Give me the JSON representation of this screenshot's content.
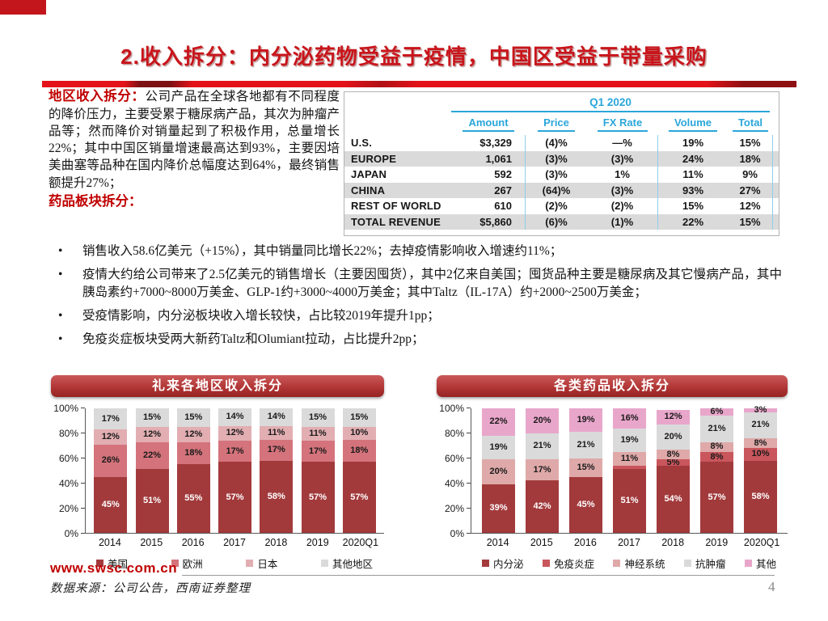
{
  "title": "2.收入拆分：内分泌药物受益于疫情，中国区受益于带量采购",
  "intro": {
    "lead": "地区收入拆分：",
    "body": "公司产品在全球各地都有不同程度的降价压力，主要受累于糖尿病产品，其次为肿瘤产品等；然而降价对销量起到了积极作用，总量增长22%；其中中国区销量增速最高达到93%，主要因培美曲塞等品种在国内降价总幅度达到64%，最终销售额提升27%；",
    "lead2": "药品板块拆分："
  },
  "table": {
    "period": "Q1 2020",
    "columns": [
      "Amount",
      "Price",
      "FX Rate",
      "Volume",
      "Total"
    ],
    "rows": [
      {
        "label": "U.S.",
        "values": [
          "$3,329",
          "(4)%",
          "—%",
          "19%",
          "15%"
        ]
      },
      {
        "label": "EUROPE",
        "values": [
          "1,061",
          "(3)%",
          "(3)%",
          "24%",
          "18%"
        ]
      },
      {
        "label": "JAPAN",
        "values": [
          "592",
          "(3)%",
          "1%",
          "11%",
          "9%"
        ]
      },
      {
        "label": "CHINA",
        "values": [
          "267",
          "(64)%",
          "(3)%",
          "93%",
          "27%"
        ]
      },
      {
        "label": "REST OF WORLD",
        "values": [
          "610",
          "(2)%",
          "(2)%",
          "15%",
          "12%"
        ]
      },
      {
        "label": "TOTAL REVENUE",
        "values": [
          "$5,860",
          "(6)%",
          "(1)%",
          "22%",
          "15%"
        ]
      }
    ]
  },
  "bullets": [
    "销售收入58.6亿美元（+15%），其中销量同比增长22%；去掉疫情影响收入增速约11%；",
    "疫情大约给公司带来了2.5亿美元的销售增长（主要因囤货），其中2亿来自美国；囤货品种主要是糖尿病及其它慢病产品，其中胰岛素约+7000~8000万美金、GLP-1约+3000~4000万美金；其中Taltz（IL-17A）约+2000~2500万美金；",
    "受疫情影响，内分泌板块收入增长较快，占比较2019年提升1pp；",
    "免疫炎症板块受两大新药Taltz和Olumiant拉动，占比提升2pp；"
  ],
  "chart_data": [
    {
      "type": "bar",
      "stacked": true,
      "title": "礼来各地区收入拆分",
      "categories": [
        "2014",
        "2015",
        "2016",
        "2017",
        "2018",
        "2019",
        "2020Q1"
      ],
      "series": [
        {
          "name": "美国",
          "color": "#a23a3c",
          "label_color": "#ffffff",
          "values": [
            45,
            51,
            55,
            57,
            58,
            57,
            57
          ],
          "labels": [
            "45%",
            "51%",
            "55%",
            "57%",
            "58%",
            "57%",
            "57%"
          ]
        },
        {
          "name": "欧洲",
          "color": "#d4737b",
          "label_color": "#1a1a1a",
          "values": [
            26,
            22,
            18,
            17,
            17,
            17,
            18
          ],
          "labels": [
            "26%",
            "22%",
            "18%",
            "17%",
            "17%",
            "17%",
            "18%"
          ]
        },
        {
          "name": "日本",
          "color": "#e2aeb2",
          "label_color": "#1a1a1a",
          "values": [
            12,
            12,
            12,
            12,
            11,
            11,
            10
          ],
          "labels": [
            "12%",
            "12%",
            "12%",
            "12%",
            "11%",
            "11%",
            "10%"
          ]
        },
        {
          "name": "其他地区",
          "color": "#dadada",
          "label_color": "#1a1a1a",
          "values": [
            17,
            15,
            15,
            14,
            14,
            15,
            15
          ],
          "labels": [
            "17%",
            "15%",
            "15%",
            "14%",
            "14%",
            "15%",
            "15%"
          ]
        }
      ],
      "ylim": [
        0,
        100
      ],
      "yticks": [
        0,
        20,
        40,
        60,
        80,
        100
      ],
      "ytick_suffix": "%",
      "grid": false,
      "legend_position": "bottom"
    },
    {
      "type": "bar",
      "stacked": true,
      "title": "各类药品收入拆分",
      "categories": [
        "2014",
        "2015",
        "2016",
        "2017",
        "2018",
        "2019",
        "2020Q1"
      ],
      "series": [
        {
          "name": "内分泌",
          "color": "#a23a3c",
          "label_color": "#ffffff",
          "values": [
            39,
            42,
            45,
            51,
            54,
            57,
            58
          ],
          "labels": [
            "39%",
            "42%",
            "45%",
            "51%",
            "54%",
            "57%",
            "58%"
          ]
        },
        {
          "name": "免疫炎症",
          "color": "#c9565c",
          "label_color": "#1a1a1a",
          "values": [
            0,
            0,
            0,
            3,
            5,
            8,
            10
          ],
          "labels": [
            "",
            "",
            "",
            "",
            "5%",
            "8%",
            "10%"
          ]
        },
        {
          "name": "神经系统",
          "color": "#dfa9a9",
          "label_color": "#1a1a1a",
          "values": [
            20,
            17,
            15,
            11,
            8,
            8,
            8
          ],
          "labels": [
            "20%",
            "17%",
            "15%",
            "11%",
            "8%",
            "8%",
            "8%"
          ]
        },
        {
          "name": "抗肿瘤",
          "color": "#dadada",
          "label_color": "#1a1a1a",
          "values": [
            19,
            21,
            21,
            19,
            20,
            21,
            21
          ],
          "labels": [
            "19%",
            "21%",
            "21%",
            "19%",
            "20%",
            "21%",
            "21%"
          ]
        },
        {
          "name": "其他",
          "color": "#e9a6cb",
          "label_color": "#1a1a1a",
          "values": [
            22,
            20,
            19,
            16,
            12,
            6,
            3
          ],
          "labels": [
            "22%",
            "20%",
            "19%",
            "16%",
            "12%",
            "6%",
            "3%"
          ]
        }
      ],
      "ylim": [
        0,
        100
      ],
      "yticks": [
        0,
        20,
        40,
        60,
        80,
        100
      ],
      "ytick_suffix": "%",
      "grid": false,
      "legend_position": "bottom"
    }
  ],
  "footer": {
    "website": "www.swsc.com.cn",
    "source_note": "数据来源：公司公告，西南证券整理",
    "page_number": "4"
  },
  "colors": {
    "accent_red": "#c8151b",
    "banner_red": "#b23636",
    "table_header_cyan": "#2aa6da",
    "row_stripe_gray": "#dadada"
  }
}
